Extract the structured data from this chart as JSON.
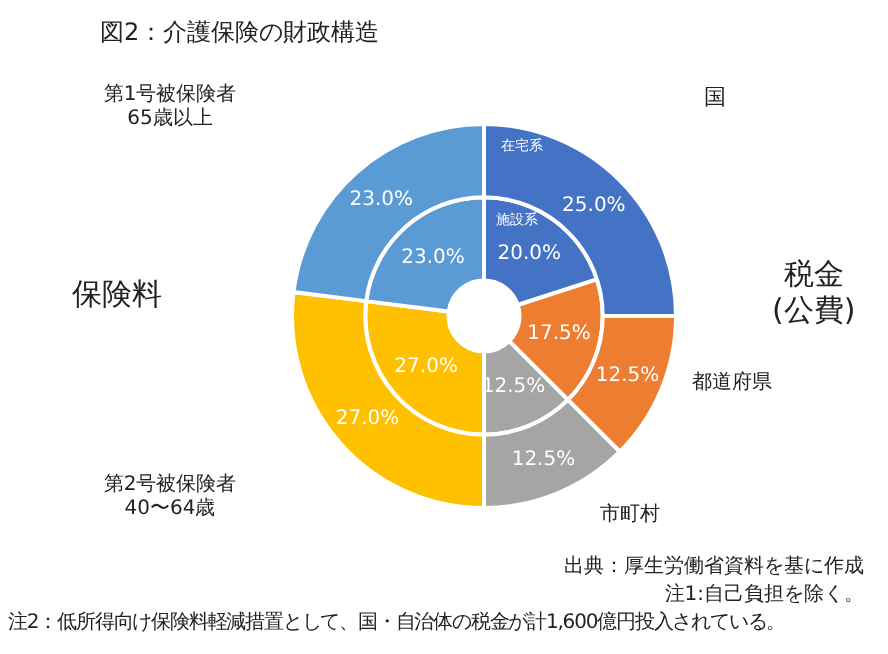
{
  "chart_data": {
    "type": "donut",
    "title": "図2：介護保険の財政構造",
    "categories": [
      "国",
      "都道府県",
      "市町村",
      "第2号被保険者\n40〜64歳",
      "第1号被保険者\n65歳以上"
    ],
    "colors": [
      "#4472c4",
      "#ed7d31",
      "#a5a5a5",
      "#ffc000",
      "#5b9bd5"
    ],
    "series": [
      {
        "name": "在宅系",
        "values": [
          25.0,
          12.5,
          12.5,
          27.0,
          23.0
        ]
      },
      {
        "name": "施設系",
        "values": [
          20.0,
          17.5,
          12.5,
          27.0,
          23.0
        ]
      }
    ],
    "value_labels": [
      [
        "25.0%",
        "12.5%",
        "12.5%",
        "27.0%",
        "23.0%"
      ],
      [
        "20.0%",
        "17.5%",
        "12.5%",
        "27.0%",
        "23.0%"
      ]
    ],
    "legend": false,
    "annotations": [
      "税金\n(公費)",
      "保険料",
      "出典：厚生労働省資料を基に作成",
      "注1:自己負担を除く。",
      "注2：低所得向け保険料軽減措置として、国・自治体の税金が計1,600億円投入されている。"
    ]
  }
}
